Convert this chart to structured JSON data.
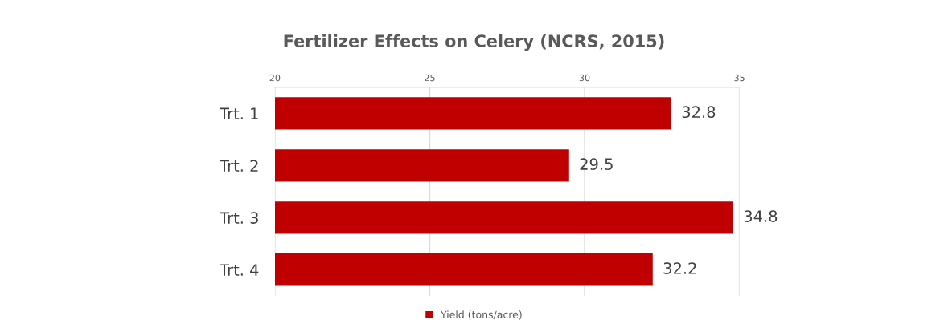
{
  "chart_data": {
    "type": "bar",
    "orientation": "horizontal",
    "title": "Fertilizer Effects on Celery (NCRS, 2015)",
    "categories": [
      "Trt. 1",
      "Trt. 2",
      "Trt. 3",
      "Trt. 4"
    ],
    "series": [
      {
        "name": "Yield (tons/acre)",
        "color": "#c00000",
        "values": [
          32.8,
          29.5,
          34.8,
          32.2
        ]
      }
    ],
    "xlim": [
      20,
      35
    ],
    "xticks": [
      20,
      25,
      30,
      35
    ],
    "grid": "x",
    "legend": "bottom",
    "data_labels": true
  }
}
